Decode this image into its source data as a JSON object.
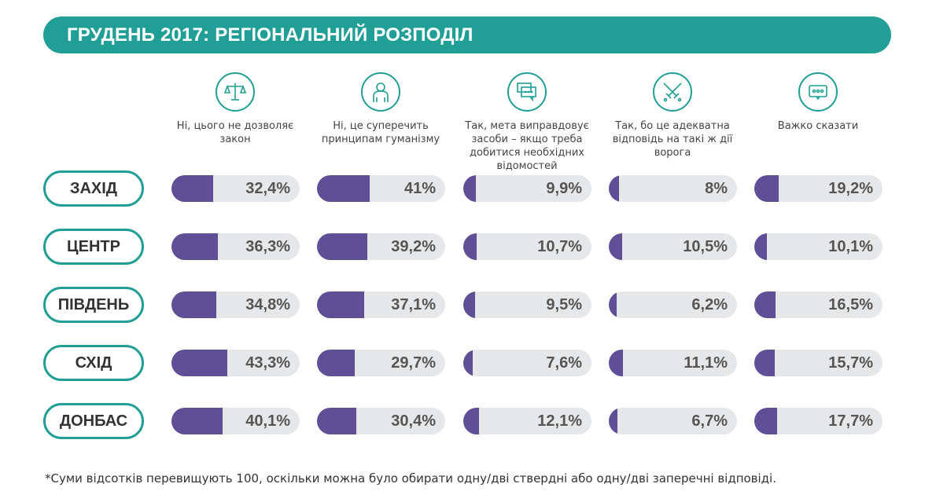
{
  "title": "ГРУДЕНЬ 2017: РЕГІОНАЛЬНИЙ РОЗПОДІЛ",
  "colors": {
    "accent": "#219e96",
    "bar_fill": "#5f4f96",
    "bar_track": "#e6e7e9"
  },
  "footnote": "*Суми відсотків перевищують 100, оскільки можна було обирати одну/дві ствердні або одну/дві заперечні відповіді.",
  "chart_data": {
    "type": "bar",
    "categories": [
      "Ні, цього не дозволяє закон",
      "Ні, це суперечить принципам гуманізму",
      "Так, мета виправдовує засоби – якщо треба добитися необхідних відомостей",
      "Так, бо це адекватна відповідь на такі ж дії ворога",
      "Важко сказати"
    ],
    "category_icons": [
      "scales-icon",
      "person-icon",
      "chat-bubbles-icon",
      "crossed-swords-icon",
      "speech-bubble-dots-icon"
    ],
    "ylim": [
      0,
      100
    ],
    "series": [
      {
        "name": "ЗАХІД",
        "values": [
          32.4,
          41,
          9.9,
          8,
          19.2
        ],
        "labels": [
          "32,4%",
          "41%",
          "9,9%",
          "8%",
          "19,2%"
        ]
      },
      {
        "name": "ЦЕНТР",
        "values": [
          36.3,
          39.2,
          10.7,
          10.5,
          10.1
        ],
        "labels": [
          "36,3%",
          "39,2%",
          "10,7%",
          "10,5%",
          "10,1%"
        ]
      },
      {
        "name": "ПІВДЕНЬ",
        "values": [
          34.8,
          37.1,
          9.5,
          6.2,
          16.5
        ],
        "labels": [
          "34,8%",
          "37,1%",
          "9,5%",
          "6,2%",
          "16,5%"
        ]
      },
      {
        "name": "СХІД",
        "values": [
          43.3,
          29.7,
          7.6,
          11.1,
          15.7
        ],
        "labels": [
          "43,3%",
          "29,7%",
          "7,6%",
          "11,1%",
          "15,7%"
        ]
      },
      {
        "name": "ДОНБАС",
        "values": [
          40.1,
          30.4,
          12.1,
          6.7,
          17.7
        ],
        "labels": [
          "40,1%",
          "30,4%",
          "12,1%",
          "6,7%",
          "17,7%"
        ]
      }
    ]
  }
}
